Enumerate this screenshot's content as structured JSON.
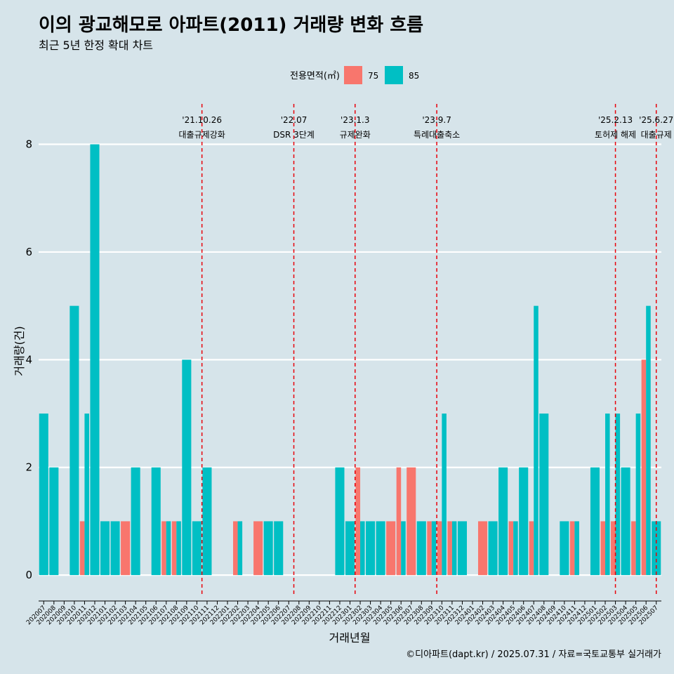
{
  "chart_data": {
    "type": "bar",
    "title": "이의 광교해모로 아파트(2011) 거래량 변화 흐름",
    "subtitle": "최근 5년 한정 확대 차트",
    "xlabel": "거래년월",
    "ylabel": "거래량(건)",
    "ylim": [
      -0.35,
      8.75
    ],
    "yticks": [
      0,
      2,
      4,
      6,
      8
    ],
    "legend": {
      "title": "전용면적(㎡)",
      "position": "top"
    },
    "caption": "©디아파트(dapt.kr) / 2025.07.31 / 자료=국토교통부 실거래가",
    "categories": [
      "202007",
      "202008",
      "202009",
      "202010",
      "202011",
      "202012",
      "202101",
      "202102",
      "202103",
      "202104",
      "202105",
      "202106",
      "202107",
      "202108",
      "202109",
      "202110",
      "202111",
      "202112",
      "202201",
      "202202",
      "202203",
      "202204",
      "202205",
      "202206",
      "202207",
      "202208",
      "202209",
      "202210",
      "202211",
      "202212",
      "202301",
      "202302",
      "202303",
      "202304",
      "202305",
      "202306",
      "202307",
      "202308",
      "202309",
      "202310",
      "202311",
      "202312",
      "202401",
      "202402",
      "202403",
      "202404",
      "202405",
      "202406",
      "202407",
      "202408",
      "202409",
      "202410",
      "202411",
      "202412",
      "202501",
      "202502",
      "202503",
      "202504",
      "202505",
      "202506",
      "202507"
    ],
    "series": [
      {
        "name": "75",
        "color": "#f8766d",
        "values": [
          0,
          0,
          0,
          0,
          1,
          0,
          0,
          0,
          1,
          0,
          0,
          0,
          1,
          1,
          0,
          0,
          0,
          0,
          0,
          1,
          0,
          1,
          0,
          0,
          0,
          0,
          0,
          0,
          0,
          0,
          0,
          2,
          0,
          0,
          1,
          2,
          2,
          0,
          1,
          1,
          1,
          0,
          0,
          1,
          0,
          0,
          1,
          0,
          1,
          0,
          0,
          0,
          1,
          0,
          0,
          1,
          1,
          0,
          1,
          4,
          0
        ]
      },
      {
        "name": "85",
        "color": "#00bfc4",
        "values": [
          3,
          2,
          0,
          5,
          3,
          8,
          1,
          1,
          0,
          2,
          0,
          2,
          1,
          1,
          4,
          1,
          2,
          0,
          0,
          1,
          0,
          0,
          1,
          1,
          0,
          0,
          0,
          0,
          0,
          2,
          1,
          1,
          1,
          1,
          0,
          1,
          0,
          1,
          1,
          3,
          1,
          1,
          0,
          0,
          1,
          2,
          1,
          2,
          5,
          3,
          0,
          1,
          1,
          0,
          2,
          3,
          3,
          2,
          3,
          5,
          1
        ]
      }
    ],
    "events": [
      {
        "date": "'21.10.26",
        "label": "대출규제강화",
        "index": 15
      },
      {
        "date": "'22.07",
        "label": "DSR 3단계",
        "index": 24
      },
      {
        "date": "'23.1.3",
        "label": "규제완화",
        "index": 30
      },
      {
        "date": "'23.9.7",
        "label": "특례대출축소",
        "index": 38
      },
      {
        "date": "'25.2.13",
        "label": "토허제 해제",
        "index": 55.5
      },
      {
        "date": "'25.6.27",
        "label": "대출규제",
        "index": 59.5
      }
    ]
  }
}
